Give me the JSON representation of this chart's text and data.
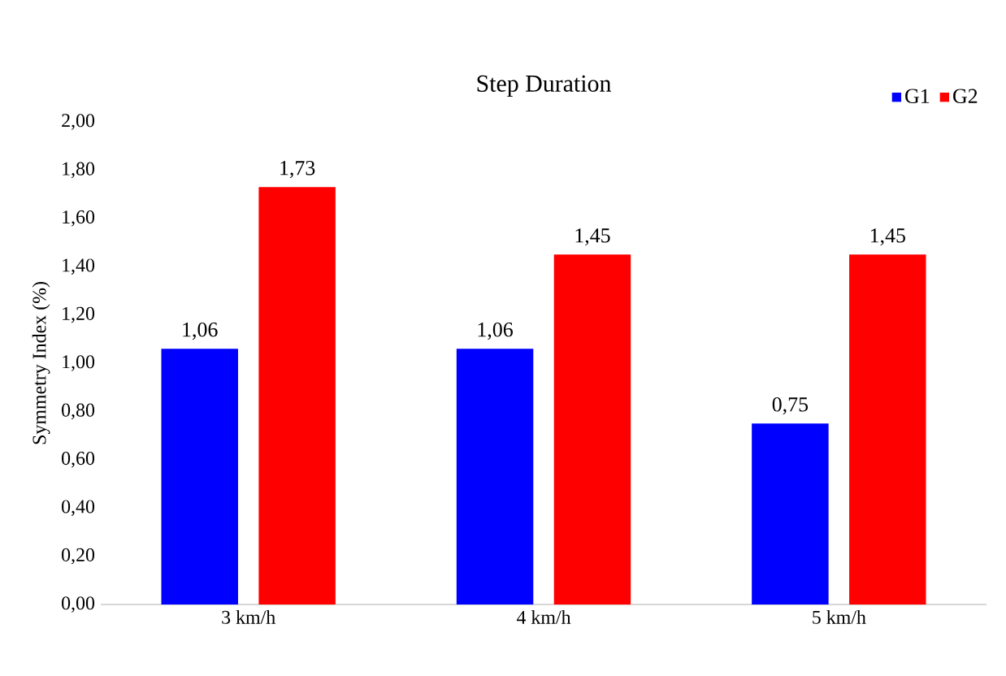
{
  "chart_data": {
    "type": "bar",
    "title": "Step Duration",
    "ylabel": "Symmetry Index (%)",
    "categories": [
      "3 km/h",
      "4 km/h",
      "5 km/h"
    ],
    "series": [
      {
        "name": "G1",
        "color": "#0000ff",
        "values": [
          1.06,
          1.06,
          0.75
        ],
        "value_labels": [
          "1,06",
          "1,06",
          "0,75"
        ]
      },
      {
        "name": "G2",
        "color": "#ff0000",
        "values": [
          1.73,
          1.45,
          1.45
        ],
        "value_labels": [
          "1,73",
          "1,45",
          "1,45"
        ]
      }
    ],
    "ylim": [
      0,
      2
    ],
    "yticks": [
      {
        "value": 0,
        "label": "0,00"
      },
      {
        "value": 0.2,
        "label": "0,20"
      },
      {
        "value": 0.4,
        "label": "0,40"
      },
      {
        "value": 0.6,
        "label": "0,60"
      },
      {
        "value": 0.8,
        "label": "0,80"
      },
      {
        "value": 1.0,
        "label": "1,00"
      },
      {
        "value": 1.2,
        "label": "1,20"
      },
      {
        "value": 1.4,
        "label": "1,40"
      },
      {
        "value": 1.6,
        "label": "1,60"
      },
      {
        "value": 1.8,
        "label": "1,80"
      },
      {
        "value": 2.0,
        "label": "2,00"
      }
    ],
    "grid": false,
    "legend": "top right"
  }
}
